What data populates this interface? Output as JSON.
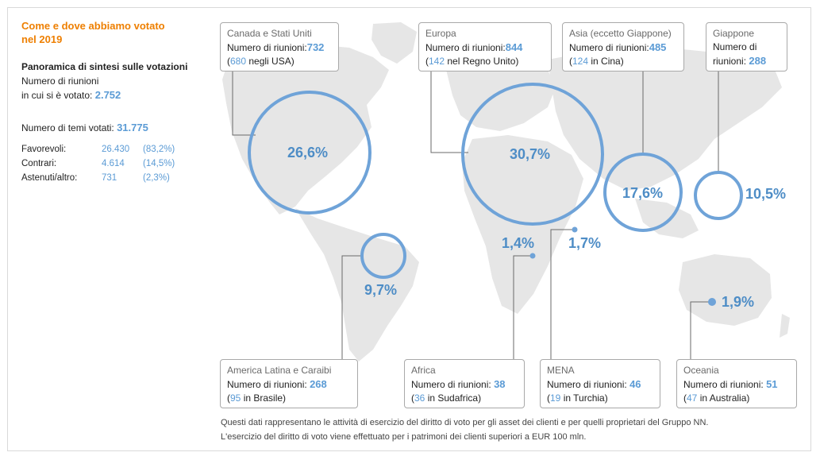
{
  "title": "Come e dove abbiamo votato nel 2019",
  "summary": {
    "heading": "Panoramica di sintesi sulle votazioni",
    "meetings_label_1": "Numero di riunioni",
    "meetings_label_2": "in cui si è votato:",
    "meetings_value": "2.752",
    "topics_label": "Numero di temi votati:",
    "topics_value": "31.775",
    "rows": [
      {
        "label": "Favorevoli:",
        "value": "26.430",
        "pct": "(83,2%)"
      },
      {
        "label": "Contrari:",
        "value": "4.614",
        "pct": "(14,5%)"
      },
      {
        "label": "Astenuti/altro:",
        "value": "731",
        "pct": "(2,3%)"
      }
    ]
  },
  "regions": {
    "canada": {
      "name": "Canada e Stati Uniti",
      "meetings_label": "Numero di riunioni:",
      "meetings": "732",
      "sub_num": "680",
      "sub_text": " negli USA)",
      "pct": "26,6%"
    },
    "europa": {
      "name": "Europa",
      "meetings_label": "Numero di riunioni:",
      "meetings": "844",
      "sub_num": "142",
      "sub_text": " nel Regno Unito)",
      "pct": "30,7%"
    },
    "asia": {
      "name": "Asia (eccetto Giappone)",
      "meetings_label": "Numero di riunioni:",
      "meetings": "485",
      "sub_num": "124",
      "sub_text": " in Cina)",
      "pct": "17,6%"
    },
    "giappone": {
      "name": "Giappone",
      "meetings_label_1": "Numero di",
      "meetings_label_2": "riunioni:",
      "meetings": "288",
      "pct": "10,5%"
    },
    "latam": {
      "name": "America Latina e Caraibi",
      "meetings_label": "Numero di riunioni:",
      "meetings": "268",
      "sub_num": "95",
      "sub_text": " in Brasile)",
      "pct": "9,7%"
    },
    "africa": {
      "name": "Africa",
      "meetings_label": "Numero di riunioni:",
      "meetings": "38",
      "sub_num": "36",
      "sub_text": " in Sudafrica)",
      "pct": "1,4%"
    },
    "mena": {
      "name": "MENA",
      "meetings_label": "Numero di riunioni:",
      "meetings": "46",
      "sub_num": "19",
      "sub_text": " in Turchia)",
      "pct": "1,7%"
    },
    "oceania": {
      "name": "Oceania",
      "meetings_label": "Numero di riunioni:",
      "meetings": "51",
      "sub_num": "47",
      "sub_text": " in Australia)",
      "pct": "1,9%"
    }
  },
  "footnote": {
    "line1": "Questi dati rappresentano le attività di esercizio del diritto di voto per gli asset dei clienti e per quelli proprietari del Gruppo NN.",
    "line2": "L'esercizio del diritto di voto viene effettuato per i patrimoni dei clienti superiori a EUR 100 mln."
  },
  "colors": {
    "accent": "#ee7f00",
    "blue": "#5b9bd5",
    "land": "#e6e6e6"
  }
}
